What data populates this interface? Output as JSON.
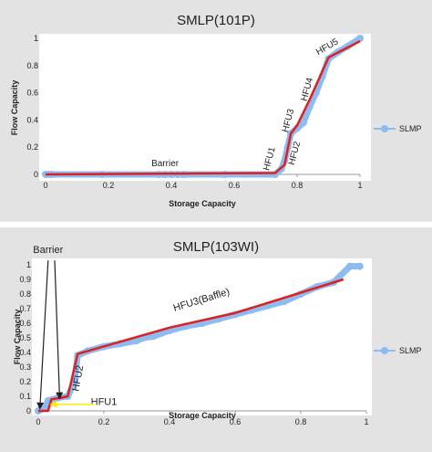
{
  "chart_data": [
    {
      "type": "scatter",
      "title": "SMLP(101P)",
      "xlabel": "Storage Capacity",
      "ylabel": "Flow Capacity",
      "xlim": [
        0,
        1
      ],
      "ylim": [
        0,
        1
      ],
      "xticks": [
        "0",
        "0.2",
        "0.4",
        "0.6",
        "0.8",
        "1"
      ],
      "yticks": [
        "0",
        "0.2",
        "0.4",
        "0.6",
        "0.8",
        "1"
      ],
      "legend": {
        "label": "SLMP",
        "position": "right"
      },
      "colors": {
        "points": "#8cbcf0",
        "line": "#e02020"
      },
      "series": [
        {
          "name": "SLMP",
          "points": [
            [
              0.0,
              0.0
            ],
            [
              0.01,
              0.0
            ],
            [
              0.02,
              0.0
            ],
            [
              0.18,
              0.0
            ],
            [
              0.36,
              0.0
            ],
            [
              0.38,
              0.0
            ],
            [
              0.4,
              0.0
            ],
            [
              0.42,
              0.0
            ],
            [
              0.44,
              0.0
            ],
            [
              0.57,
              0.0
            ],
            [
              0.73,
              0.0
            ],
            [
              0.75,
              0.04
            ],
            [
              0.76,
              0.1
            ],
            [
              0.77,
              0.2
            ],
            [
              0.78,
              0.3
            ],
            [
              0.8,
              0.34
            ],
            [
              0.82,
              0.38
            ],
            [
              0.84,
              0.5
            ],
            [
              0.86,
              0.6
            ],
            [
              0.88,
              0.72
            ],
            [
              0.9,
              0.85
            ],
            [
              0.93,
              0.9
            ],
            [
              0.96,
              0.94
            ],
            [
              1.0,
              1.0
            ]
          ]
        },
        {
          "name": "",
          "points": [
            [
              0.0,
              0.0
            ],
            [
              0.73,
              0.01
            ],
            [
              0.76,
              0.07
            ],
            [
              0.78,
              0.3
            ],
            [
              0.8,
              0.36
            ],
            [
              0.84,
              0.55
            ],
            [
              0.9,
              0.86
            ],
            [
              1.0,
              0.98
            ]
          ]
        }
      ],
      "annotations": [
        {
          "text": "Barrier",
          "x": 0.38,
          "y": 0.06
        },
        {
          "text": "HFU1",
          "x": 0.72,
          "y": 0.11,
          "rotate": -75
        },
        {
          "text": "HFU2",
          "x": 0.8,
          "y": 0.15,
          "rotate": -75
        },
        {
          "text": "HFU3",
          "x": 0.78,
          "y": 0.39,
          "rotate": -75
        },
        {
          "text": "HFU4",
          "x": 0.84,
          "y": 0.62,
          "rotate": -75
        },
        {
          "text": "HFU5",
          "x": 0.9,
          "y": 0.92,
          "rotate": -30
        }
      ]
    },
    {
      "type": "scatter",
      "title": "SMLP(103WI)",
      "xlabel": "Storage Capacity",
      "ylabel": "Flow Capacity",
      "xlim": [
        0,
        1
      ],
      "ylim": [
        0,
        1
      ],
      "xticks": [
        "0",
        "0.2",
        "0.4",
        "0.6",
        "0.8",
        "1"
      ],
      "yticks": [
        "0",
        "0.1",
        "0.2",
        "0.3",
        "0.4",
        "0.5",
        "0.6",
        "0.7",
        "0.8",
        "0.9",
        "1"
      ],
      "legend": {
        "label": "SLMP",
        "position": "right"
      },
      "colors": {
        "points": "#8cbcf0",
        "line": "#e02020",
        "arrow": "#222222",
        "hfu1_arrow": "#f5f000"
      },
      "series": [
        {
          "name": "SLMP",
          "points": [
            [
              0.0,
              0.0
            ],
            [
              0.02,
              0.02
            ],
            [
              0.03,
              0.07
            ],
            [
              0.06,
              0.09
            ],
            [
              0.09,
              0.1
            ],
            [
              0.11,
              0.2
            ],
            [
              0.12,
              0.38
            ],
            [
              0.15,
              0.41
            ],
            [
              0.2,
              0.44
            ],
            [
              0.25,
              0.46
            ],
            [
              0.3,
              0.48
            ],
            [
              0.32,
              0.5
            ],
            [
              0.35,
              0.51
            ],
            [
              0.4,
              0.55
            ],
            [
              0.45,
              0.58
            ],
            [
              0.5,
              0.6
            ],
            [
              0.55,
              0.63
            ],
            [
              0.6,
              0.66
            ],
            [
              0.65,
              0.69
            ],
            [
              0.7,
              0.72
            ],
            [
              0.75,
              0.75
            ],
            [
              0.8,
              0.8
            ],
            [
              0.85,
              0.85
            ],
            [
              0.9,
              0.88
            ],
            [
              0.95,
              0.99
            ],
            [
              0.98,
              0.99
            ]
          ]
        },
        {
          "name": "",
          "points": [
            [
              0.0,
              0.0
            ],
            [
              0.03,
              0.0
            ],
            [
              0.04,
              0.08
            ],
            [
              0.07,
              0.09
            ],
            [
              0.09,
              0.1
            ],
            [
              0.12,
              0.39
            ],
            [
              0.4,
              0.57
            ],
            [
              0.6,
              0.67
            ],
            [
              0.93,
              0.9
            ]
          ]
        }
      ],
      "annotations": [
        {
          "text": "Barrier",
          "x": 0.03,
          "y": 1.08
        },
        {
          "text": "HFU1",
          "x": 0.2,
          "y": 0.04
        },
        {
          "text": "HFU2",
          "x": 0.13,
          "y": 0.22,
          "rotate": -80
        },
        {
          "text": "HFU3(Baffle)",
          "x": 0.5,
          "y": 0.74,
          "rotate": -17
        }
      ]
    }
  ]
}
